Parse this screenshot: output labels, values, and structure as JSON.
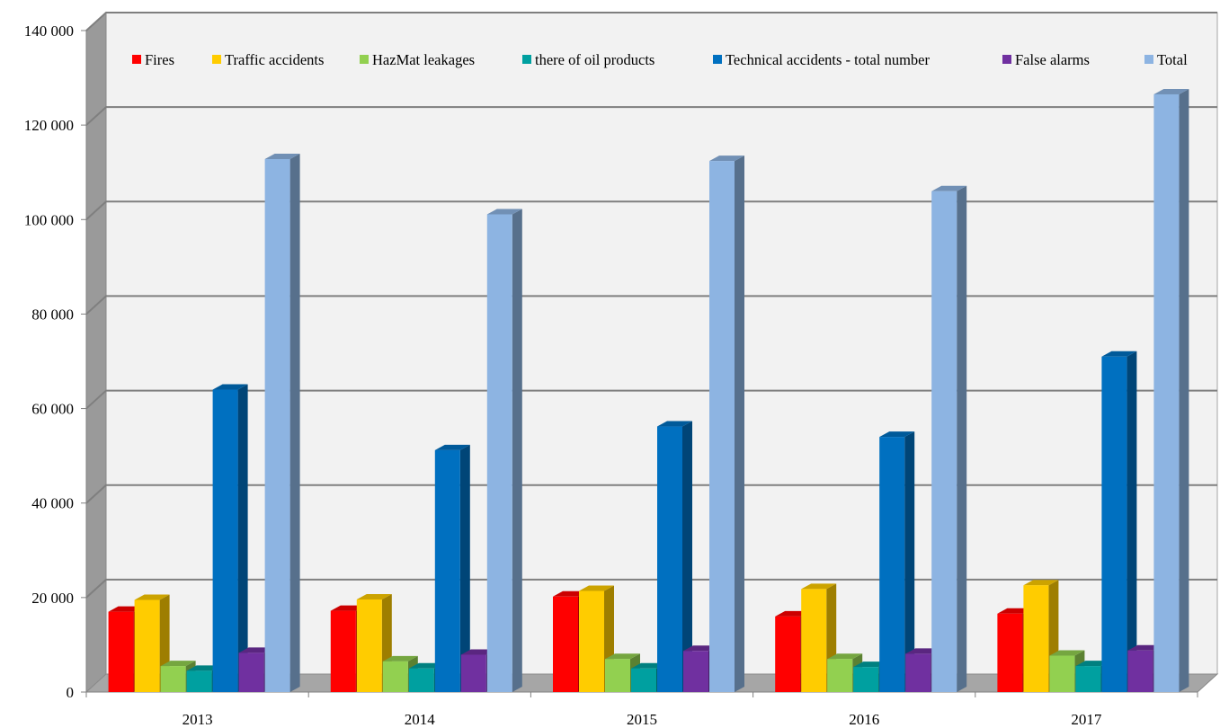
{
  "chart_data": {
    "type": "bar",
    "variant": "3d-clustered-column",
    "categories": [
      "2013",
      "2014",
      "2015",
      "2016",
      "2017"
    ],
    "series": [
      {
        "name": "Fires",
        "color": "#ff0000",
        "values": [
          17000,
          17200,
          20200,
          16000,
          16600
        ]
      },
      {
        "name": "Traffic accidents",
        "color": "#ffcc00",
        "values": [
          19500,
          19600,
          21400,
          21800,
          22600
        ]
      },
      {
        "name": "HazMat leakages",
        "color": "#92d050",
        "values": [
          5500,
          6500,
          7000,
          7000,
          7700
        ]
      },
      {
        "name": "there of oil products",
        "color": "#00a0a0",
        "values": [
          4500,
          5000,
          5000,
          5300,
          5500
        ]
      },
      {
        "name": "Technical accidents - total number",
        "color": "#0070c0",
        "values": [
          64000,
          51200,
          56200,
          54000,
          71000
        ]
      },
      {
        "name": "False alarms",
        "color": "#7030a0",
        "values": [
          8300,
          7900,
          8700,
          8100,
          8800
        ]
      },
      {
        "name": "Total",
        "color": "#8db4e2",
        "values": [
          112800,
          101100,
          112400,
          106000,
          126500
        ]
      }
    ],
    "yticks": [
      "0",
      "20 000",
      "40 000",
      "60 000",
      "80 000",
      "100 000",
      "120 000",
      "140 000"
    ],
    "ylim": [
      0,
      140000
    ],
    "grid": true,
    "legend_position": "top",
    "title": "",
    "xlabel": "",
    "ylabel": ""
  }
}
